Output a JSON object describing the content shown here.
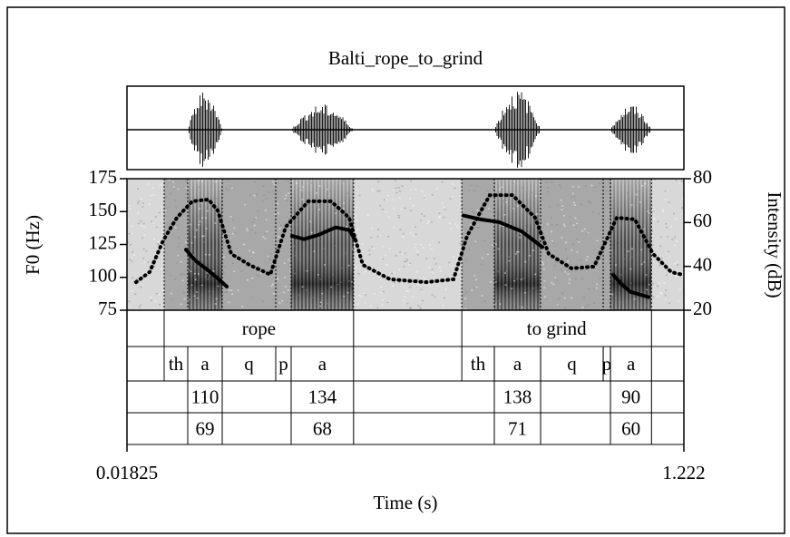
{
  "chart_data": {
    "type": "praat",
    "title": "Balti_rope_to_grind",
    "xlabel": "Time (s)",
    "ylabel": "F0 (Hz)",
    "y2label": "Intensity (dB)",
    "xlim": [
      0.01825,
      1.222
    ],
    "xticks": [
      0.01825,
      1.222
    ],
    "ylim": [
      75,
      175
    ],
    "yticks": [
      75,
      100,
      125,
      150,
      175
    ],
    "y2lim": [
      20,
      80
    ],
    "y2ticks": [
      20,
      40,
      60,
      80
    ],
    "pitch": {
      "color": "#000000",
      "x": [
        0.1457,
        0.1653,
        0.1947,
        0.2182,
        0.2339,
        0.29,
        0.3751,
        0.4006,
        0.43,
        0.4692,
        0.4986,
        0.5123,
        0.6,
        0.7456,
        0.7829,
        0.822,
        0.8711,
        0.9162,
        1.0,
        1.0691,
        1.0867,
        1.1063,
        1.1455
      ],
      "values": [
        121,
        113,
        105,
        98,
        93,
        null,
        131.5,
        129,
        132,
        138,
        136,
        128,
        null,
        147,
        144,
        142,
        135,
        123,
        null,
        102,
        95,
        89,
        85
      ]
    },
    "intensity": {
      "color": "#000000",
      "axis": "y2",
      "x": [
        0.0379,
        0.0673,
        0.0967,
        0.1261,
        0.1594,
        0.1947,
        0.2143,
        0.2438,
        0.2829,
        0.328,
        0.3614,
        0.4104,
        0.4594,
        0.4986,
        0.528,
        0.5868,
        0.6652,
        0.724,
        0.7534,
        0.8024,
        0.8514,
        0.9004,
        0.9299,
        0.9789,
        1.0279,
        1.0769,
        1.1161,
        1.1553,
        1.1945,
        1.218
      ],
      "values": [
        32.8,
        37.4,
        51.9,
        62.2,
        69.7,
        70.5,
        65.5,
        45.7,
        40.7,
        36.2,
        58,
        69.7,
        69.7,
        62.2,
        40.7,
        34.1,
        32.8,
        34.1,
        53.9,
        72.5,
        72.5,
        62.2,
        45.7,
        39.1,
        39.9,
        62.2,
        61.4,
        45.7,
        37.4,
        36.2
      ]
    },
    "tiers": [
      {
        "intervals": [
          {
            "start": 0.0986,
            "end": 0.508,
            "text": "rope"
          },
          {
            "start": 0.742,
            "end": 1.152,
            "text": "to grind"
          }
        ]
      },
      {
        "intervals": [
          {
            "start": 0.0986,
            "end": 0.1496,
            "text": "th"
          },
          {
            "start": 0.1496,
            "end": 0.2241,
            "text": "a"
          },
          {
            "start": 0.2241,
            "end": 0.3398,
            "text": "q"
          },
          {
            "start": 0.3398,
            "end": 0.3731,
            "text": "p"
          },
          {
            "start": 0.3731,
            "end": 0.508,
            "text": "a"
          },
          {
            "start": 0.742,
            "end": 0.8123,
            "text": "th"
          },
          {
            "start": 0.8123,
            "end": 0.9123,
            "text": "a"
          },
          {
            "start": 0.9123,
            "end": 1.0476,
            "text": "q"
          },
          {
            "start": 1.0476,
            "end": 1.0633,
            "text": "p"
          },
          {
            "start": 1.0633,
            "end": 1.152,
            "text": "a"
          }
        ]
      },
      {
        "intervals": [
          {
            "start": 0.1496,
            "end": 0.2241,
            "text": "110"
          },
          {
            "start": 0.3731,
            "end": 0.508,
            "text": "134"
          },
          {
            "start": 0.8123,
            "end": 0.9123,
            "text": "138"
          },
          {
            "start": 1.0633,
            "end": 1.152,
            "text": "90"
          }
        ]
      },
      {
        "intervals": [
          {
            "start": 0.1496,
            "end": 0.2241,
            "text": "69"
          },
          {
            "start": 0.3731,
            "end": 0.508,
            "text": "68"
          },
          {
            "start": 0.8123,
            "end": 0.9123,
            "text": "71"
          },
          {
            "start": 1.0633,
            "end": 1.152,
            "text": "60"
          }
        ]
      }
    ]
  }
}
